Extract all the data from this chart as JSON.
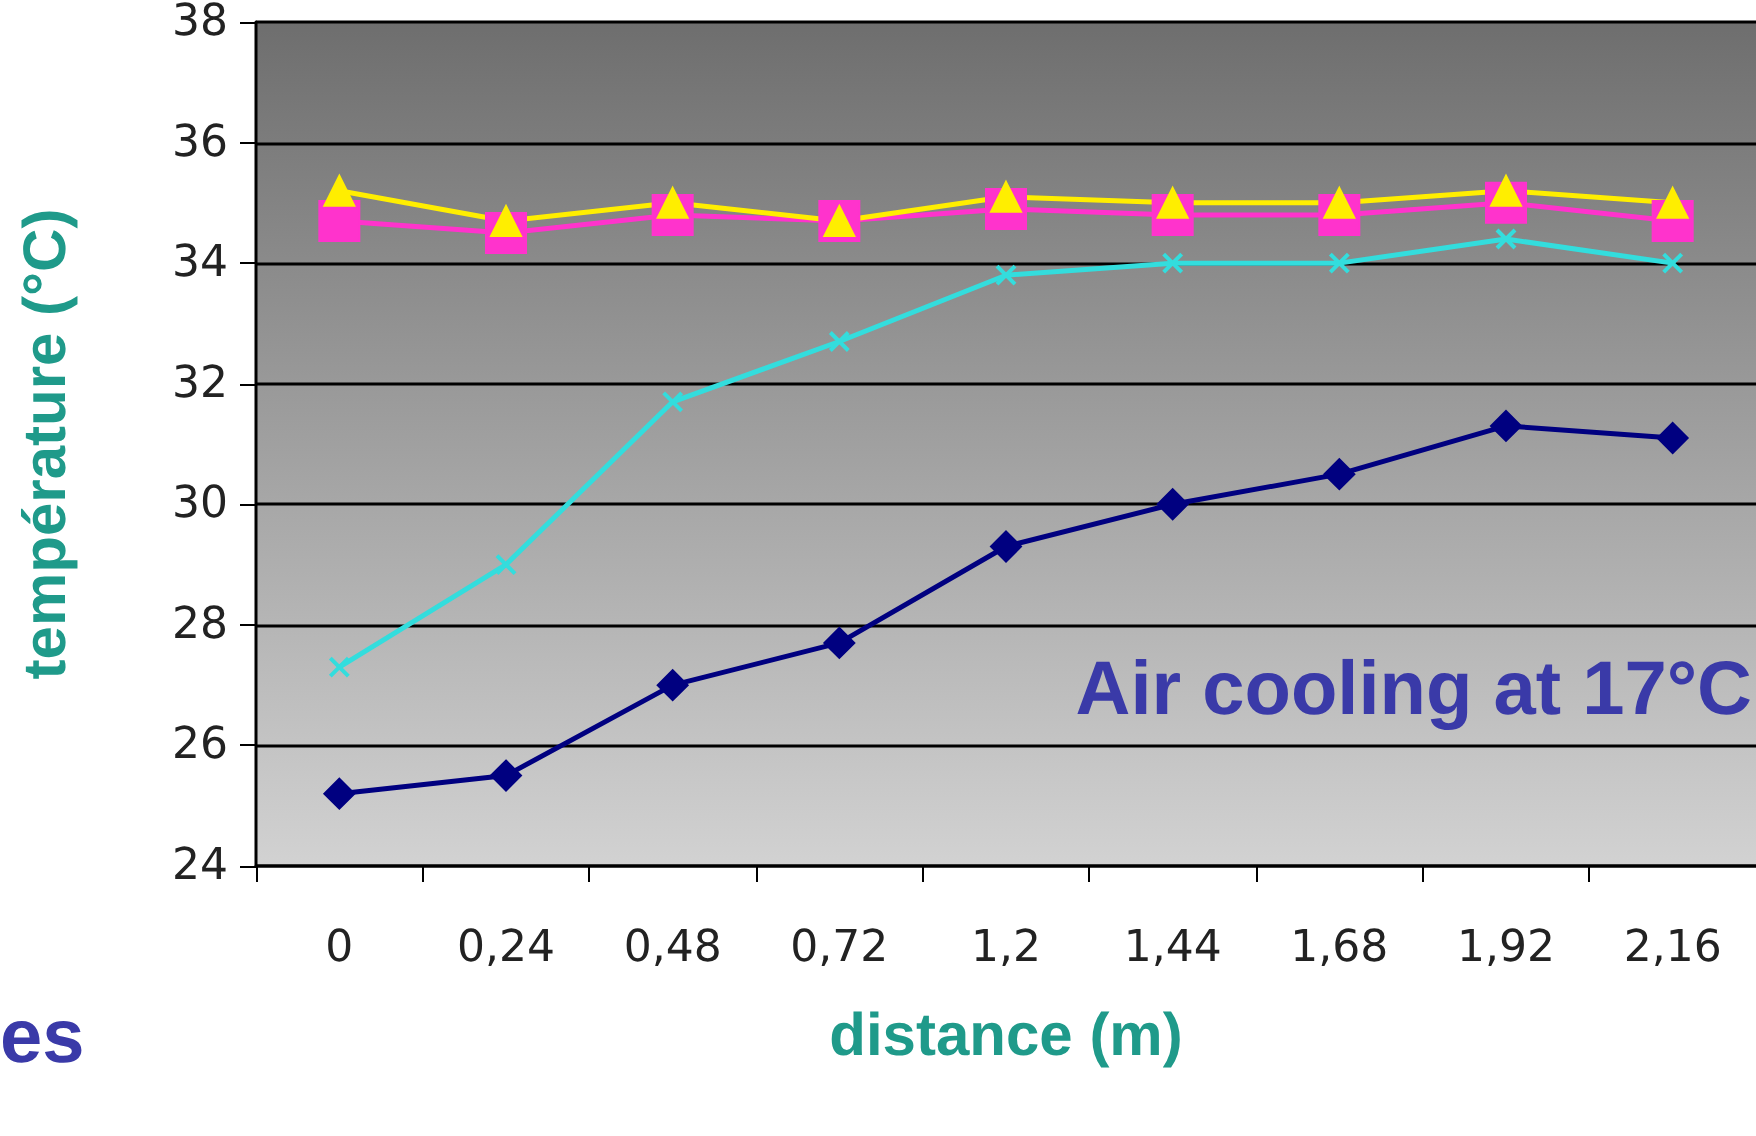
{
  "chart_data": {
    "type": "line",
    "xlabel": "distance (m)",
    "ylabel": "température (°C)",
    "annotations": [
      "Air cooling at 17°C",
      "es"
    ],
    "categories": [
      "0",
      "0,24",
      "0,48",
      "0,72",
      "1,2",
      "1,44",
      "1,68",
      "1,92",
      "2,16"
    ],
    "series": [
      {
        "color": "#000080",
        "marker": "diamond",
        "values": [
          25.2,
          25.5,
          27.0,
          27.7,
          29.3,
          30.0,
          30.5,
          31.3,
          31.1
        ]
      },
      {
        "color": "#33dddd",
        "marker": "cross",
        "values": [
          27.3,
          29.0,
          31.7,
          32.7,
          33.8,
          34.0,
          34.0,
          34.4,
          34.0
        ]
      },
      {
        "color": "#ff33cc",
        "marker": "square",
        "values": [
          34.7,
          34.5,
          34.8,
          34.7,
          34.9,
          34.8,
          34.8,
          35.0,
          34.7
        ]
      },
      {
        "color": "#ffee00",
        "marker": "triangle",
        "values": [
          35.2,
          34.7,
          35.0,
          34.7,
          35.1,
          35.0,
          35.0,
          35.2,
          35.0
        ]
      }
    ],
    "ylim": [
      24,
      38
    ],
    "yticks": [
      24,
      26,
      28,
      30,
      32,
      34,
      36,
      38
    ],
    "grid": "y",
    "line_style": "solid"
  }
}
